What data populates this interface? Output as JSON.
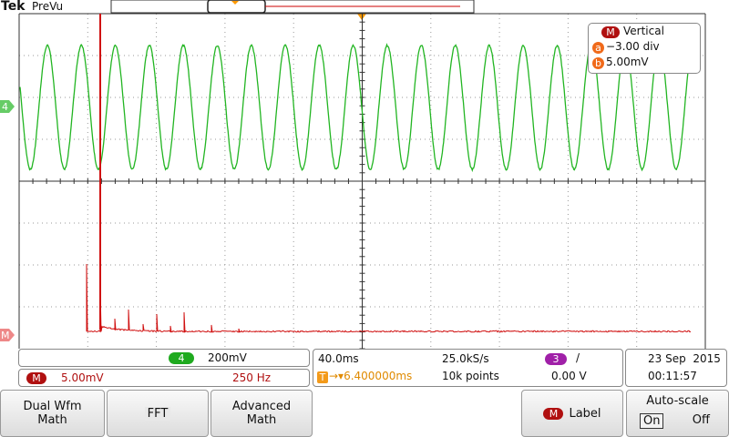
{
  "header": {
    "brand": "Tek",
    "mode": "PreVu"
  },
  "vertical_menu": {
    "badge": "M",
    "title": "Vertical",
    "a_badge": "a",
    "a_value": "−3.00 div",
    "b_badge": "b",
    "b_value": "5.00mV"
  },
  "channel_markers": {
    "ch4": "4",
    "math": "M"
  },
  "status": {
    "ch4_badge": "4",
    "ch4_scale": "200mV",
    "math_badge": "M",
    "math_scale": "5.00mV",
    "math_freq": "250 Hz",
    "timebase": "40.0ms",
    "sample_rate": "25.0kS/s",
    "trigger_source_badge": "3",
    "trigger_slope": "/",
    "trigger_badge": "T",
    "trigger_position": "→▾6.400000ms",
    "record_length": "10k points",
    "trigger_level": "0.00 V",
    "date": "23 Sep  2015",
    "time": "00:11:57"
  },
  "buttons": {
    "dual_wfm_math": [
      "Dual Wfm",
      "Math"
    ],
    "fft": "FFT",
    "advanced_math": [
      "Advanced",
      "Math"
    ],
    "label_badge": "M",
    "label": "Label",
    "auto_scale": "Auto-scale",
    "on": "On",
    "off": "Off"
  }
}
